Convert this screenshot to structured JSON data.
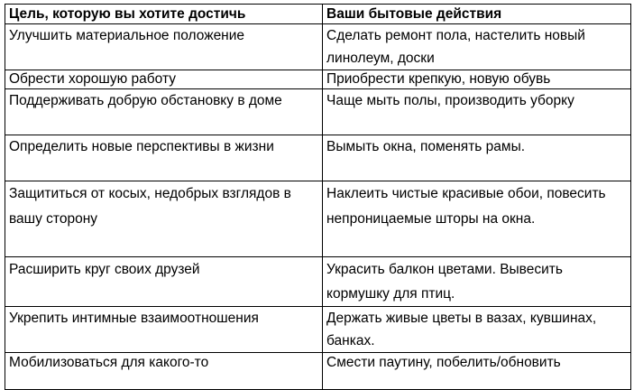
{
  "table": {
    "headers": [
      "Цель, которую вы хотите достичь",
      "Ваши бытовые действия"
    ],
    "rows": [
      [
        "Улучшить материальное положение",
        "Сделать ремонт пола, настелить новый линолеум, доски"
      ],
      [
        "Обрести хорошую работу",
        "Приобрести крепкую, новую обувь"
      ],
      [
        "Поддерживать добрую обстановку в доме",
        "Чаще мыть полы, производить уборку"
      ],
      [
        "Определить новые перспективы в жизни",
        "Вымыть окна, поменять рамы."
      ],
      [
        "Защититься от косых, недобрых взглядов в вашу сторону",
        "Наклеить чистые красивые обои, повесить непроницаемые шторы на окна."
      ],
      [
        "Расширить круг своих друзей",
        "Украсить балкон цветами. Вывесить кормушку для птиц."
      ],
      [
        "Укрепить интимные взаимоотношения",
        "Держать живые цветы в вазах, кувшинах, банках."
      ],
      [
        "Мобилизоваться для какого-то",
        "Смести паутину, побелить/обновить"
      ]
    ]
  }
}
